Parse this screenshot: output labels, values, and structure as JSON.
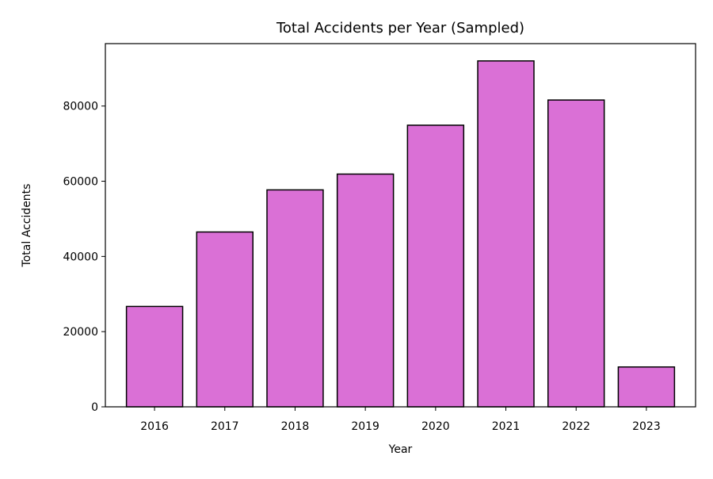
{
  "colors": {
    "bar_fill": "#da70d6",
    "bar_stroke": "#000000",
    "background": "#ffffff",
    "axes": "#000000"
  },
  "chart_data": {
    "type": "bar",
    "title": "Total Accidents per Year (Sampled)",
    "xlabel": "Year",
    "ylabel": "Total Accidents",
    "categories": [
      "2016",
      "2017",
      "2018",
      "2019",
      "2020",
      "2021",
      "2022",
      "2023"
    ],
    "values": [
      26700,
      46500,
      57700,
      61900,
      74900,
      92000,
      81600,
      10600
    ],
    "ylim": [
      0,
      96600
    ],
    "yticks": [
      0,
      20000,
      40000,
      60000,
      80000
    ],
    "ytick_labels": [
      "0",
      "20000",
      "40000",
      "60000",
      "80000"
    ],
    "grid": false,
    "legend": "none"
  }
}
